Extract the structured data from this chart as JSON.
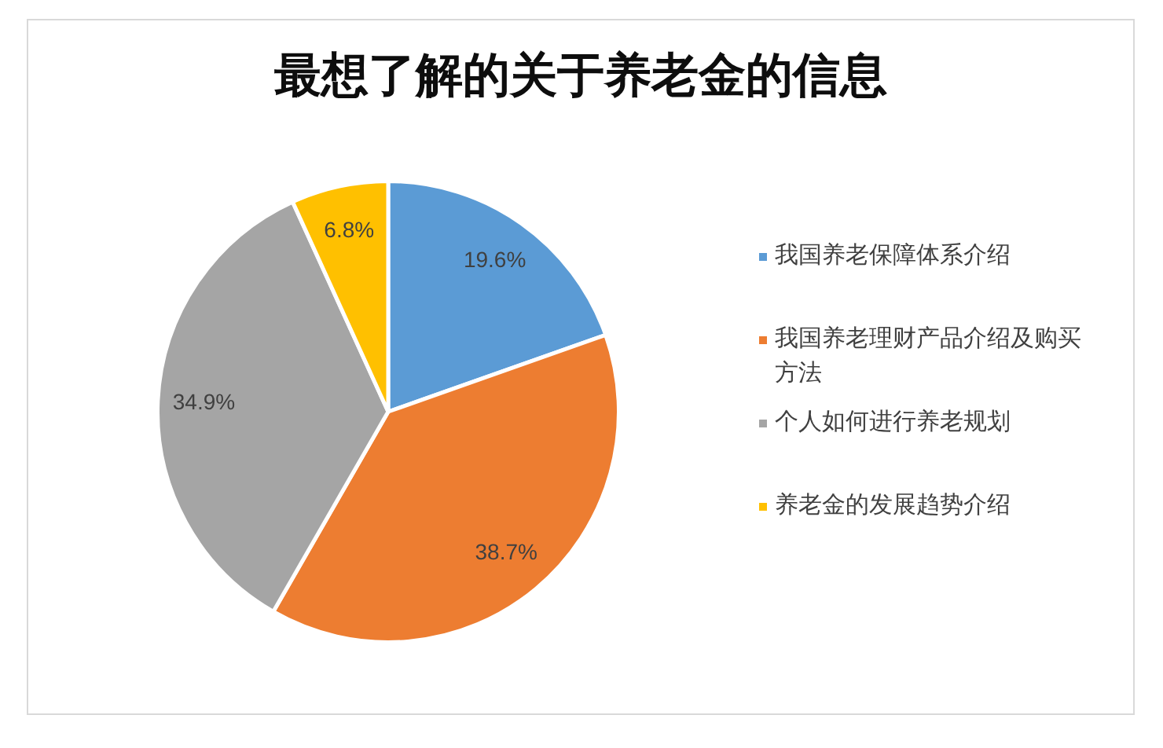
{
  "chart_data": {
    "type": "pie",
    "title": "最想了解的关于养老金的信息",
    "categories": [
      "我国养老保障体系介绍",
      "我国养老理财产品介绍及购买方法",
      "个人如何进行养老规划",
      "养老金的发展趋势介绍"
    ],
    "values": [
      19.6,
      38.7,
      34.9,
      6.8
    ],
    "colors": [
      "#5b9bd5",
      "#ed7d31",
      "#a5a5a5",
      "#ffc000"
    ],
    "value_labels": [
      "19.6%",
      "38.7%",
      "34.9%",
      "6.8%"
    ],
    "legend": "right"
  }
}
